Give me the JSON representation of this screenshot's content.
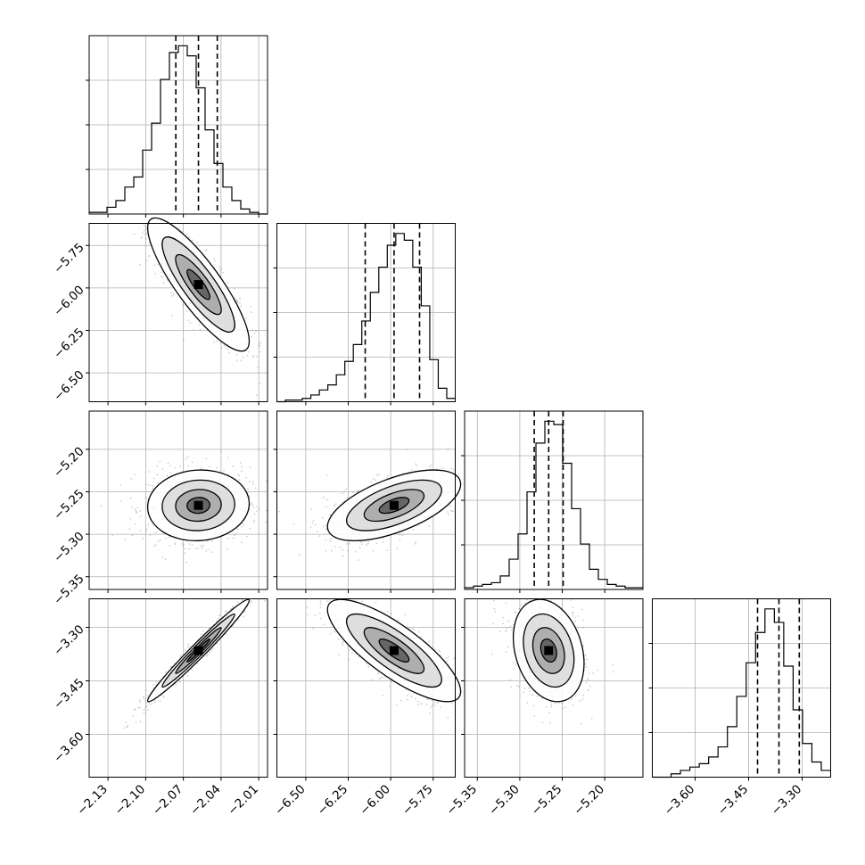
{
  "chart_data": {
    "type": "corner",
    "parameters": [
      {
        "x_ticks": [
          "−2.13",
          "−2.10",
          "−2.07",
          "−2.04",
          "−2.01"
        ],
        "y_ticks": [],
        "range": [
          -2.145,
          -2.003
        ],
        "quantiles": [
          -2.076,
          -2.058,
          -2.043
        ],
        "hist": [
          1,
          1,
          4,
          8,
          16,
          22,
          38,
          54,
          80,
          96,
          100,
          94,
          75,
          50,
          30,
          16,
          8,
          3,
          1,
          0
        ]
      },
      {
        "x_ticks": [
          "−6.50",
          "−6.25",
          "−6.00",
          "−5.75"
        ],
        "y_ticks": [
          "−5.75",
          "−6.00",
          "−6.25",
          "−6.50"
        ],
        "range": [
          -6.67,
          -5.62
        ],
        "quantiles": [
          -6.15,
          -5.98,
          -5.83
        ],
        "hist": [
          0,
          1,
          1,
          2,
          4,
          7,
          10,
          16,
          24,
          34,
          48,
          65,
          80,
          93,
          100,
          96,
          80,
          57,
          25,
          8,
          2
        ]
      },
      {
        "x_ticks": [
          "−5.35",
          "−5.30",
          "−5.25",
          "−5.20"
        ],
        "y_ticks": [
          "−5.20",
          "−5.25",
          "−5.30",
          "−5.35"
        ],
        "range": [
          -5.365,
          -5.155
        ],
        "quantiles": [
          -5.283,
          -5.266,
          -5.249
        ],
        "hist": [
          1,
          2,
          3,
          4,
          8,
          18,
          33,
          58,
          87,
          100,
          98,
          75,
          48,
          27,
          12,
          6,
          3,
          2,
          1,
          1
        ]
      },
      {
        "x_ticks": [
          "−3.60",
          "−3.45",
          "−3.30"
        ],
        "y_ticks": [
          "−3.30",
          "−3.45",
          "−3.60"
        ],
        "range": [
          -3.72,
          -3.22
        ],
        "quantiles": [
          -3.425,
          -3.365,
          -3.308
        ],
        "hist": [
          0,
          0,
          2,
          4,
          6,
          8,
          12,
          18,
          30,
          48,
          68,
          86,
          100,
          92,
          66,
          40,
          20,
          9,
          4
        ]
      }
    ]
  }
}
